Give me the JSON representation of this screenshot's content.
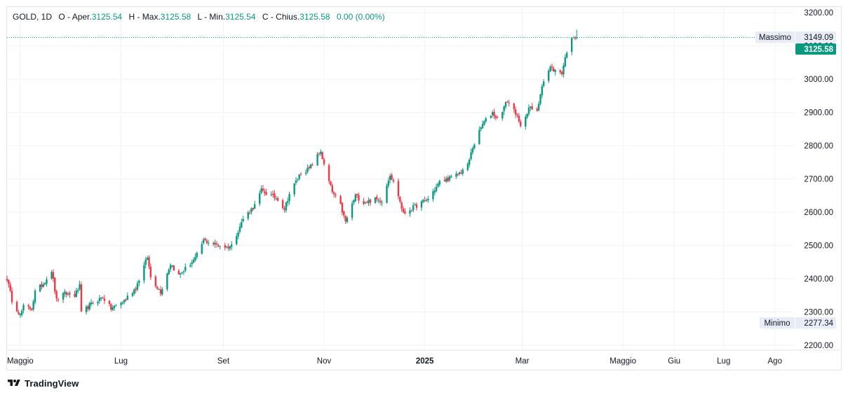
{
  "legend": {
    "symbol": "GOLD, 1D",
    "open_label": "O - Aper.",
    "open_value": "3125.54",
    "high_label": "H - Max.",
    "high_value": "3125.58",
    "low_label": "L - Min.",
    "low_value": "3125.54",
    "close_label": "C - Chius.",
    "close_value": "3125.58",
    "change": "0.00 (0.00%)"
  },
  "colors": {
    "up": "#089981",
    "down": "#f23645",
    "grid": "#f0f3fa",
    "border": "#e0e3eb",
    "label_bg": "#e8ecf5",
    "text": "#131722"
  },
  "brand": {
    "name": "TradingView",
    "icon": "tradingview-logo-icon"
  },
  "chart_data": {
    "type": "candlestick",
    "symbol": "GOLD",
    "interval": "1D",
    "y_axis": {
      "min": 2185,
      "max": 3215,
      "ticks": [
        2200,
        2300,
        2400,
        2500,
        2600,
        2700,
        2800,
        2900,
        3000,
        3100,
        3200
      ],
      "tick_labels": [
        "2200.00",
        "2300.00",
        "2400.00",
        "2500.00",
        "2600.00",
        "2700.00",
        "2800.00",
        "2900.00",
        "3000.00",
        "3100.00",
        "3200.00"
      ]
    },
    "x_axis": {
      "start": "2024-04-23",
      "end": "2025-08-13",
      "ticks": [
        {
          "date": "2024-05-01",
          "label": "Maggio",
          "bold": false
        },
        {
          "date": "2024-07-01",
          "label": "Lug",
          "bold": false
        },
        {
          "date": "2024-09-01",
          "label": "Set",
          "bold": false
        },
        {
          "date": "2024-11-01",
          "label": "Nov",
          "bold": false
        },
        {
          "date": "2025-01-01",
          "label": "2025",
          "bold": true
        },
        {
          "date": "2025-03-01",
          "label": "Mar",
          "bold": false
        },
        {
          "date": "2025-05-01",
          "label": "Maggio",
          "bold": false
        },
        {
          "date": "2025-06-01",
          "label": "Giu",
          "bold": false
        },
        {
          "date": "2025-07-01",
          "label": "Lug",
          "bold": false
        },
        {
          "date": "2025-08-01",
          "label": "Ago",
          "bold": false
        }
      ]
    },
    "grid": true,
    "price_line": {
      "value": 3125.58,
      "label": "3125.58"
    },
    "high_marker": {
      "label": "Massimo",
      "value": 3149.09,
      "value_label": "3149.09"
    },
    "low_marker": {
      "label": "Minimo",
      "value": 2277.34,
      "value_label": "2277.34"
    },
    "anchors": [
      [
        "2024-04-23",
        2400
      ],
      [
        "2024-04-26",
        2336
      ],
      [
        "2024-05-01",
        2290
      ],
      [
        "2024-05-03",
        2315
      ],
      [
        "2024-05-08",
        2310
      ],
      [
        "2024-05-10",
        2360
      ],
      [
        "2024-05-15",
        2385
      ],
      [
        "2024-05-20",
        2425
      ],
      [
        "2024-05-23",
        2335
      ],
      [
        "2024-05-28",
        2355
      ],
      [
        "2024-06-03",
        2350
      ],
      [
        "2024-06-06",
        2377
      ],
      [
        "2024-06-07",
        2295
      ],
      [
        "2024-06-12",
        2320
      ],
      [
        "2024-06-20",
        2345
      ],
      [
        "2024-06-25",
        2310
      ],
      [
        "2024-07-02",
        2330
      ],
      [
        "2024-07-10",
        2372
      ],
      [
        "2024-07-17",
        2465
      ],
      [
        "2024-07-19",
        2405
      ],
      [
        "2024-07-25",
        2360
      ],
      [
        "2024-07-31",
        2445
      ],
      [
        "2024-08-05",
        2410
      ],
      [
        "2024-08-08",
        2425
      ],
      [
        "2024-08-15",
        2460
      ],
      [
        "2024-08-20",
        2515
      ],
      [
        "2024-08-26",
        2505
      ],
      [
        "2024-09-03",
        2495
      ],
      [
        "2024-09-06",
        2500
      ],
      [
        "2024-09-13",
        2580
      ],
      [
        "2024-09-20",
        2620
      ],
      [
        "2024-09-24",
        2665
      ],
      [
        "2024-09-30",
        2650
      ],
      [
        "2024-10-04",
        2640
      ],
      [
        "2024-10-08",
        2610
      ],
      [
        "2024-10-11",
        2655
      ],
      [
        "2024-10-18",
        2720
      ],
      [
        "2024-10-23",
        2730
      ],
      [
        "2024-10-30",
        2785
      ],
      [
        "2024-11-01",
        2740
      ],
      [
        "2024-11-06",
        2660
      ],
      [
        "2024-11-11",
        2620
      ],
      [
        "2024-11-14",
        2570
      ],
      [
        "2024-11-20",
        2650
      ],
      [
        "2024-11-25",
        2630
      ],
      [
        "2024-12-02",
        2638
      ],
      [
        "2024-12-06",
        2635
      ],
      [
        "2024-12-11",
        2715
      ],
      [
        "2024-12-16",
        2650
      ],
      [
        "2024-12-19",
        2595
      ],
      [
        "2024-12-27",
        2620
      ],
      [
        "2025-01-03",
        2640
      ],
      [
        "2025-01-10",
        2690
      ],
      [
        "2025-01-20",
        2710
      ],
      [
        "2025-01-27",
        2740
      ],
      [
        "2025-01-30",
        2795
      ],
      [
        "2025-02-05",
        2865
      ],
      [
        "2025-02-11",
        2900
      ],
      [
        "2025-02-14",
        2880
      ],
      [
        "2025-02-20",
        2935
      ],
      [
        "2025-02-25",
        2900
      ],
      [
        "2025-02-28",
        2855
      ],
      [
        "2025-03-05",
        2915
      ],
      [
        "2025-03-10",
        2900
      ],
      [
        "2025-03-13",
        2985
      ],
      [
        "2025-03-18",
        3035
      ],
      [
        "2025-03-21",
        3025
      ],
      [
        "2025-03-25",
        3020
      ],
      [
        "2025-03-28",
        3085
      ],
      [
        "2025-04-01",
        3130
      ],
      [
        "2025-04-03",
        3125.58
      ]
    ]
  }
}
